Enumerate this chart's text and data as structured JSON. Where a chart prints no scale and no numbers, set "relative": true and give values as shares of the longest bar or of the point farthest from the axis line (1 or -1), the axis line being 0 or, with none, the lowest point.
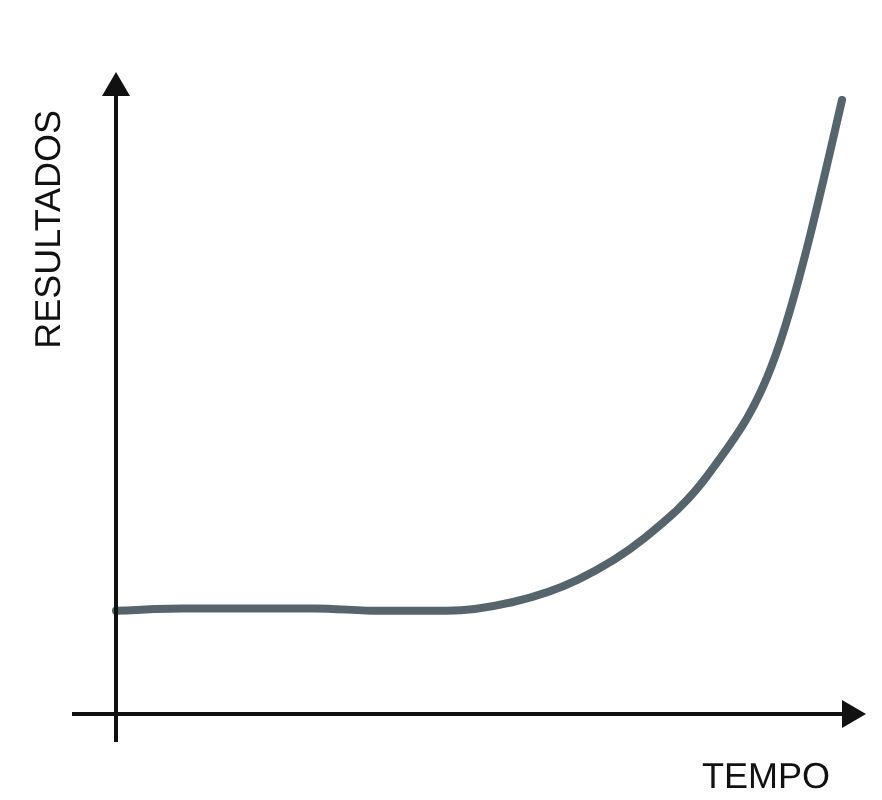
{
  "chart_data": {
    "type": "line",
    "relative": true,
    "xlabel": "TEMPO",
    "ylabel": "RESULTADOS",
    "categories": [
      null,
      null,
      null,
      null,
      null,
      null,
      null,
      null,
      null,
      null,
      null,
      null
    ],
    "series": [
      {
        "color": "#56646c",
        "values": [
          0.168,
          0.172,
          0.172,
          0.172,
          0.168,
          0.168,
          0.182,
          0.219,
          0.286,
          0.394,
          0.586,
          1
        ]
      }
    ],
    "marker": "none",
    "line_style": "solid"
  }
}
